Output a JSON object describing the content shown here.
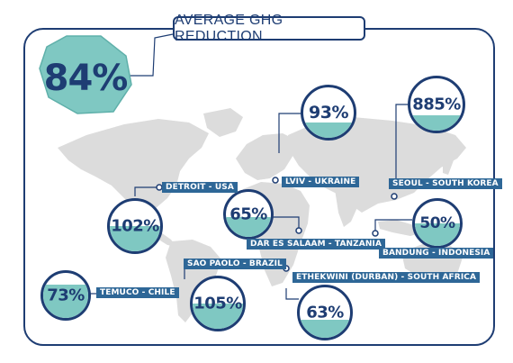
{
  "title": "AVERAGE GHG REDUCTION",
  "average": "84%",
  "colors": {
    "navy": "#1e3d73",
    "teal": "#7fc8c2",
    "label_bg": "#2e6797",
    "map": "#dcdcdc"
  },
  "cities": [
    {
      "id": "detroit",
      "label": "DETROIT - USA",
      "value": "102%",
      "fill": 0.5
    },
    {
      "id": "lviv",
      "label": "LVIV - UKRAINE",
      "value": "93%",
      "fill": 0.3
    },
    {
      "id": "seoul",
      "label": "SEOUL - SOUTH KOREA",
      "value": "885%",
      "fill": 0.3
    },
    {
      "id": "dar",
      "label": "DAR ES SALAAM - TANZANIA",
      "value": "65%",
      "fill": 0.45
    },
    {
      "id": "bandung",
      "label": "BANDUNG - INDONESIA",
      "value": "50%",
      "fill": 0.5
    },
    {
      "id": "saopaolo",
      "label": "SAO PAOLO - BRAZIL",
      "value": "105%",
      "fill": 0.5
    },
    {
      "id": "temuco",
      "label": "TEMUCO - CHILE",
      "value": "73%",
      "fill": 0.75
    },
    {
      "id": "ethekwini",
      "label": "ETHEKWINI (DURBAN) - SOUTH AFRICA",
      "value": "63%",
      "fill": 0.35
    }
  ]
}
